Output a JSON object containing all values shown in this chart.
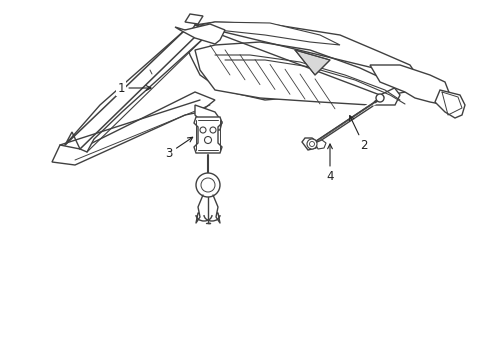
{
  "background_color": "#ffffff",
  "line_color": "#404040",
  "line_width": 1.0,
  "label_color": "#222222",
  "label_fontsize": 8.5,
  "arrow_color": "#222222",
  "figsize": [
    4.89,
    3.6
  ],
  "dpi": 100
}
